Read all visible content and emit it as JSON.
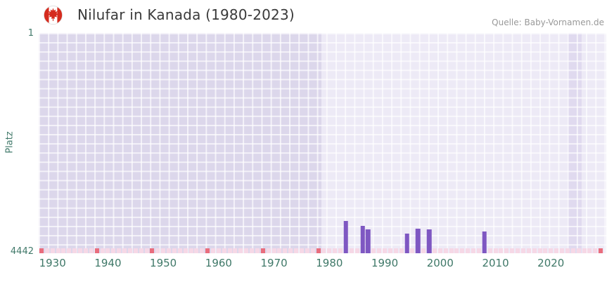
{
  "header": {
    "title": "Nilufar in Kanada (1980-2023)",
    "source": "Quelle: Baby-Vornamen.de",
    "flag": "canada"
  },
  "chart_data": {
    "type": "bar",
    "title": "Nilufar in Kanada (1980-2023)",
    "xlabel": "",
    "ylabel": "Platz",
    "y_inverted": true,
    "ylim": [
      1,
      4442
    ],
    "ytick_labels": [
      "1",
      "4442"
    ],
    "x_range": [
      1927.5,
      2030
    ],
    "xticks": [
      1930,
      1940,
      1950,
      1960,
      1970,
      1980,
      1990,
      2000,
      2010,
      2020
    ],
    "legend": "none",
    "grid": "on",
    "bar_color": "#7e57c2",
    "axis_color": "#41796a",
    "series": [
      {
        "name": "Platz",
        "points": [
          {
            "year": 1983,
            "rank": 3790
          },
          {
            "year": 1986,
            "rank": 3890
          },
          {
            "year": 1987,
            "rank": 3960
          },
          {
            "year": 1994,
            "rank": 4045
          },
          {
            "year": 1996,
            "rank": 3950
          },
          {
            "year": 1998,
            "rank": 3960
          },
          {
            "year": 2008,
            "rank": 4000
          }
        ]
      }
    ],
    "plot_bands": [
      {
        "from": 1927.5,
        "to": 1978.5,
        "color": "#dcd7eb"
      },
      {
        "from": 1978.5,
        "to": 2030,
        "color": "#edeaf6"
      },
      {
        "from": 2023,
        "to": 2025.5,
        "color": "#e0daef"
      }
    ],
    "marker_row": {
      "start": 1928,
      "end": 2029,
      "light_color": "#f6d8e6",
      "dark_color": "#e96d7d",
      "dark_years": [
        1928,
        1938,
        1948,
        1958,
        1968,
        1978,
        2029
      ]
    }
  }
}
